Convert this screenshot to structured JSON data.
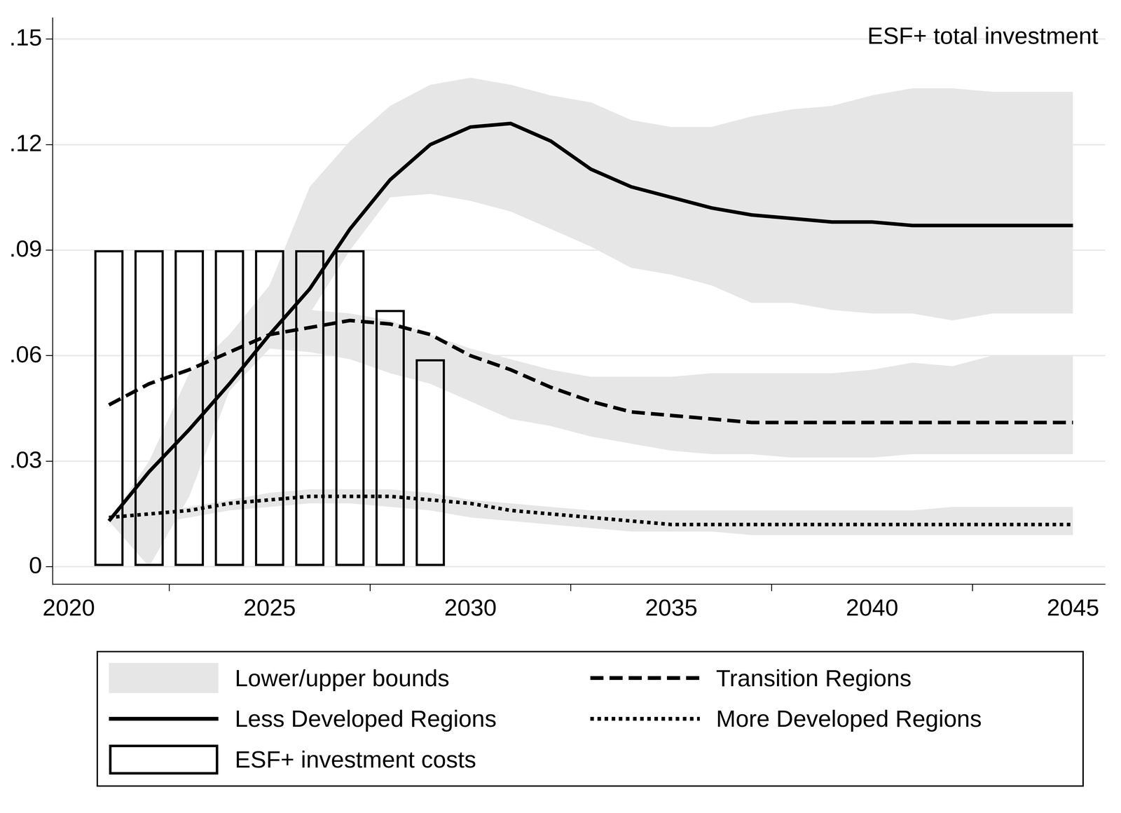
{
  "chart_data": {
    "type": "line",
    "title": "ESF+ total investment",
    "x": [
      2021,
      2022,
      2023,
      2024,
      2025,
      2026,
      2027,
      2028,
      2029,
      2030,
      2031,
      2032,
      2033,
      2034,
      2035,
      2036,
      2037,
      2038,
      2039,
      2040,
      2041,
      2042,
      2043,
      2044,
      2045
    ],
    "xlim": [
      2019.6,
      2045.8
    ],
    "xticks": [
      2020,
      2025,
      2030,
      2035,
      2040,
      2045
    ],
    "ylim": [
      -0.005,
      0.156
    ],
    "yticks": [
      0,
      {
        "value": 0.03,
        "label": ".03"
      },
      {
        "value": 0.06,
        "label": ".06"
      },
      {
        "value": 0.09,
        "label": ".09"
      },
      {
        "value": 0.12,
        "label": ".12"
      },
      {
        "value": 0.15,
        "label": ".15"
      }
    ],
    "grid": true,
    "legend": "bottom",
    "bounds": {
      "name": "Lower/upper bounds",
      "color": "#e6e6e6"
    },
    "series": [
      {
        "name": "Less Developed Regions",
        "type": "line",
        "color": "#000000",
        "line_style": "solid",
        "values": [
          0.013,
          0.027,
          0.039,
          0.052,
          0.066,
          0.079,
          0.096,
          0.11,
          0.12,
          0.125,
          0.126,
          0.121,
          0.113,
          0.108,
          0.105,
          0.102,
          0.1,
          0.099,
          0.098,
          0.098,
          0.097,
          0.097,
          0.097,
          0.097,
          0.097
        ],
        "lower": [
          0.013,
          0.0,
          0.02,
          0.05,
          0.062,
          0.072,
          0.09,
          0.105,
          0.106,
          0.104,
          0.101,
          0.096,
          0.091,
          0.085,
          0.083,
          0.08,
          0.075,
          0.075,
          0.073,
          0.072,
          0.072,
          0.07,
          0.072,
          0.072,
          0.072
        ],
        "upper": [
          0.013,
          0.03,
          0.055,
          0.066,
          0.08,
          0.108,
          0.121,
          0.131,
          0.137,
          0.139,
          0.137,
          0.134,
          0.132,
          0.127,
          0.125,
          0.125,
          0.128,
          0.13,
          0.131,
          0.134,
          0.136,
          0.136,
          0.135,
          0.135,
          0.135
        ]
      },
      {
        "name": "Transition Regions",
        "type": "line",
        "color": "#000000",
        "line_style": "dashed",
        "values": [
          0.046,
          0.052,
          0.056,
          0.061,
          0.066,
          0.068,
          0.07,
          0.069,
          0.066,
          0.06,
          0.056,
          0.051,
          0.047,
          0.044,
          0.043,
          0.042,
          0.041,
          0.041,
          0.041,
          0.041,
          0.041,
          0.041,
          0.041,
          0.041,
          0.041
        ],
        "lower": [
          0.046,
          0.052,
          0.056,
          0.06,
          0.062,
          0.061,
          0.059,
          0.055,
          0.052,
          0.047,
          0.042,
          0.04,
          0.037,
          0.035,
          0.033,
          0.032,
          0.032,
          0.031,
          0.031,
          0.031,
          0.032,
          0.032,
          0.032,
          0.032,
          0.032
        ],
        "upper": [
          0.046,
          0.052,
          0.056,
          0.061,
          0.068,
          0.073,
          0.072,
          0.07,
          0.066,
          0.062,
          0.059,
          0.056,
          0.054,
          0.054,
          0.054,
          0.055,
          0.055,
          0.055,
          0.055,
          0.056,
          0.058,
          0.057,
          0.06,
          0.06,
          0.06
        ]
      },
      {
        "name": "More Developed Regions",
        "type": "line",
        "color": "#000000",
        "line_style": "dotted",
        "values": [
          0.014,
          0.015,
          0.016,
          0.018,
          0.019,
          0.02,
          0.02,
          0.02,
          0.019,
          0.018,
          0.016,
          0.015,
          0.014,
          0.013,
          0.012,
          0.012,
          0.012,
          0.012,
          0.012,
          0.012,
          0.012,
          0.012,
          0.012,
          0.012,
          0.012
        ],
        "lower": [
          0.014,
          0.012,
          0.014,
          0.016,
          0.017,
          0.018,
          0.018,
          0.017,
          0.016,
          0.014,
          0.013,
          0.012,
          0.011,
          0.01,
          0.01,
          0.01,
          0.009,
          0.009,
          0.009,
          0.009,
          0.009,
          0.009,
          0.009,
          0.009,
          0.009
        ],
        "upper": [
          0.014,
          0.015,
          0.017,
          0.019,
          0.021,
          0.022,
          0.022,
          0.022,
          0.021,
          0.019,
          0.018,
          0.017,
          0.016,
          0.016,
          0.016,
          0.016,
          0.016,
          0.016,
          0.016,
          0.016,
          0.016,
          0.017,
          0.017,
          0.017,
          0.017
        ]
      },
      {
        "name": "ESF+ investment costs",
        "type": "bar",
        "color": "#000000",
        "values": [
          0.09,
          0.09,
          0.09,
          0.09,
          0.09,
          0.09,
          0.09,
          0.073,
          0.059,
          null,
          null,
          null,
          null,
          null,
          null,
          null,
          null,
          null,
          null,
          null,
          null,
          null,
          null,
          null,
          null
        ]
      }
    ]
  }
}
